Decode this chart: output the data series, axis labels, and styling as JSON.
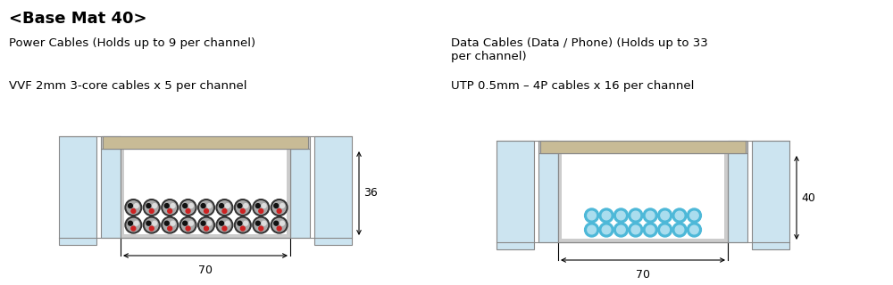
{
  "title": "<Base Mat 40>",
  "title_fontsize": 13,
  "title_fontweight": "bold",
  "bg_color": "#ffffff",
  "left_label1": "Power Cables (Holds up to 9 per channel)",
  "left_label2": "VVF 2mm 3-core cables x 5 per channel",
  "right_label1": "Data Cables (Data / Phone) (Holds up to 33\nper channel)",
  "right_label2": "UTP 0.5mm – 4P cables x 16 per channel",
  "left_dim_h": "36",
  "left_dim_w": "70",
  "right_dim_h": "40",
  "right_dim_w": "70",
  "duct_line_color": "#888888",
  "fill_color": "#cce4f0",
  "cover_color": "#c8bb96",
  "wall_color": "#cccccc",
  "annotation_color": "#222222",
  "font_label_size": 9.5,
  "font_dim_size": 9,
  "power_cable_outer": "#333333",
  "power_cable_mid": "#999999",
  "power_cable_cores": [
    "#cc2222",
    "#111111",
    "#dddddd"
  ],
  "data_cable_outer": "#4db8d8",
  "data_cable_inner": "#aaddee"
}
